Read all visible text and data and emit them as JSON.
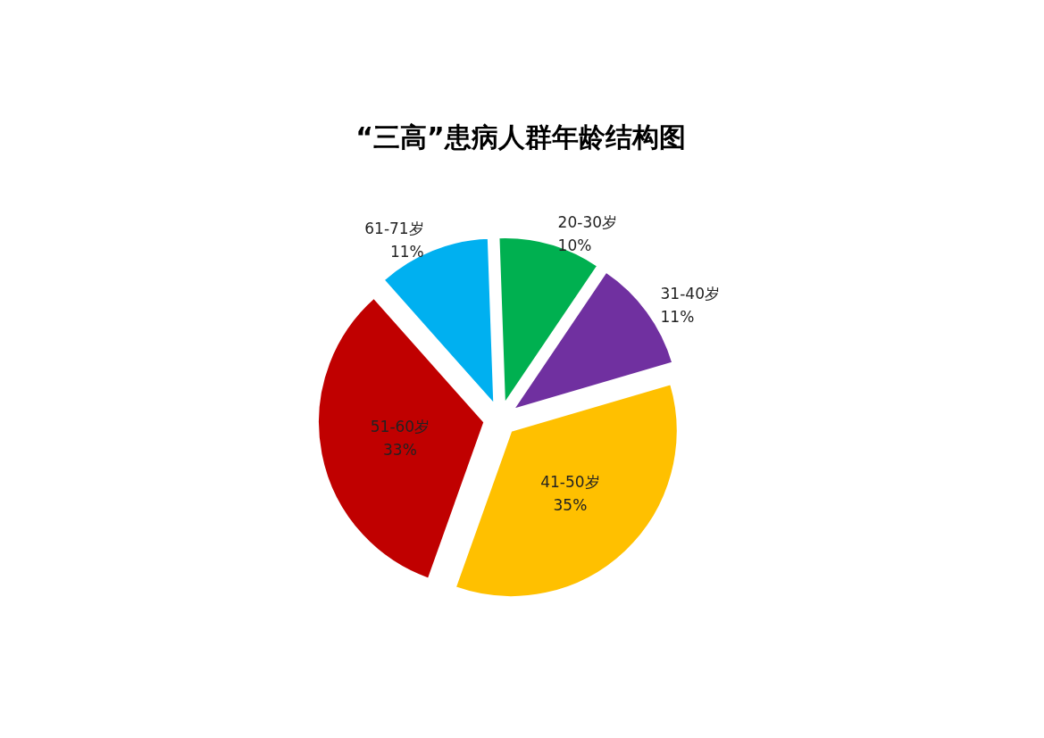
{
  "chart_data": {
    "type": "pie",
    "title": "“三高”患病人群年龄结构图",
    "categories": [
      "20-30岁",
      "31-40岁",
      "41-50岁",
      "51-60岁",
      "61-71岁"
    ],
    "values": [
      10,
      11,
      35,
      33,
      11
    ],
    "colors": [
      "#00b050",
      "#7030a0",
      "#ffc000",
      "#c00000",
      "#00b0f0"
    ],
    "value_labels": [
      "10%",
      "11%",
      "35%",
      "33%",
      "11%"
    ],
    "legend": false
  }
}
